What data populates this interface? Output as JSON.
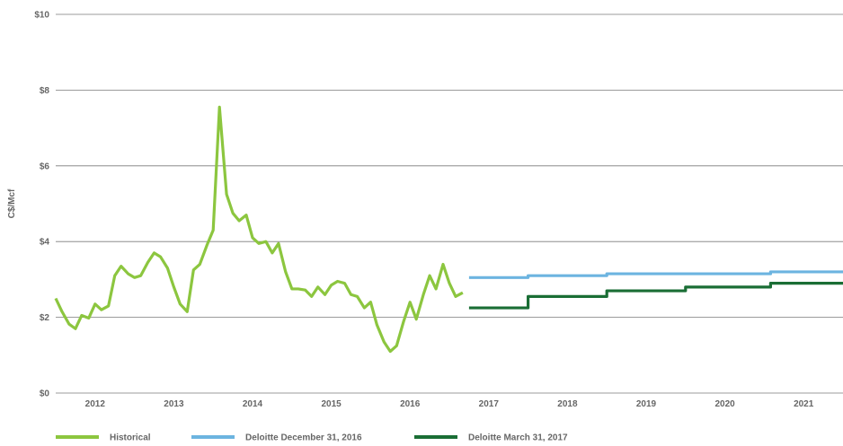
{
  "chart_data": {
    "type": "line",
    "ylabel": "C$/Mcf",
    "xlabel": "",
    "title": "",
    "ylim": [
      0,
      10
    ],
    "xlim": [
      2011.5,
      2021.5
    ],
    "y_ticks": [
      {
        "value": 0,
        "label": "$0"
      },
      {
        "value": 2,
        "label": "$2"
      },
      {
        "value": 4,
        "label": "$4"
      },
      {
        "value": 6,
        "label": "$6"
      },
      {
        "value": 8,
        "label": "$8"
      },
      {
        "value": 10,
        "label": "$10"
      }
    ],
    "x_tick_labels": [
      "2012",
      "2013",
      "2014",
      "2015",
      "2016",
      "2017",
      "2018",
      "2019",
      "2020",
      "2021"
    ],
    "grid": "horizontal",
    "legend_position": "bottom",
    "series": [
      {
        "name": "Historical",
        "color": "#8cc63f",
        "step": false,
        "points": [
          [
            2011.5,
            2.5
          ],
          [
            2011.58,
            2.15
          ],
          [
            2011.67,
            1.82
          ],
          [
            2011.75,
            1.7
          ],
          [
            2011.83,
            2.05
          ],
          [
            2011.92,
            1.98
          ],
          [
            2012.0,
            2.35
          ],
          [
            2012.08,
            2.2
          ],
          [
            2012.17,
            2.3
          ],
          [
            2012.25,
            3.1
          ],
          [
            2012.33,
            3.35
          ],
          [
            2012.42,
            3.15
          ],
          [
            2012.5,
            3.05
          ],
          [
            2012.58,
            3.1
          ],
          [
            2012.67,
            3.45
          ],
          [
            2012.75,
            3.7
          ],
          [
            2012.83,
            3.6
          ],
          [
            2012.92,
            3.3
          ],
          [
            2013.0,
            2.8
          ],
          [
            2013.08,
            2.35
          ],
          [
            2013.17,
            2.15
          ],
          [
            2013.25,
            3.25
          ],
          [
            2013.33,
            3.4
          ],
          [
            2013.42,
            3.9
          ],
          [
            2013.5,
            4.3
          ],
          [
            2013.58,
            7.55
          ],
          [
            2013.67,
            5.25
          ],
          [
            2013.75,
            4.75
          ],
          [
            2013.83,
            4.55
          ],
          [
            2013.92,
            4.7
          ],
          [
            2014.0,
            4.1
          ],
          [
            2014.08,
            3.95
          ],
          [
            2014.17,
            4.0
          ],
          [
            2014.25,
            3.7
          ],
          [
            2014.33,
            3.95
          ],
          [
            2014.42,
            3.2
          ],
          [
            2014.5,
            2.75
          ],
          [
            2014.58,
            2.75
          ],
          [
            2014.67,
            2.72
          ],
          [
            2014.75,
            2.55
          ],
          [
            2014.83,
            2.8
          ],
          [
            2014.92,
            2.6
          ],
          [
            2015.0,
            2.85
          ],
          [
            2015.08,
            2.95
          ],
          [
            2015.17,
            2.9
          ],
          [
            2015.25,
            2.6
          ],
          [
            2015.33,
            2.55
          ],
          [
            2015.42,
            2.25
          ],
          [
            2015.5,
            2.4
          ],
          [
            2015.58,
            1.8
          ],
          [
            2015.67,
            1.35
          ],
          [
            2015.75,
            1.1
          ],
          [
            2015.83,
            1.25
          ],
          [
            2015.92,
            1.9
          ],
          [
            2016.0,
            2.4
          ],
          [
            2016.08,
            1.95
          ],
          [
            2016.17,
            2.6
          ],
          [
            2016.25,
            3.1
          ],
          [
            2016.33,
            2.75
          ],
          [
            2016.42,
            3.4
          ],
          [
            2016.5,
            2.9
          ],
          [
            2016.58,
            2.55
          ],
          [
            2016.67,
            2.65
          ]
        ]
      },
      {
        "name": "Deloitte December 31, 2016",
        "color": "#6cb4e0",
        "step": true,
        "points": [
          [
            2016.75,
            3.05
          ],
          [
            2017.5,
            3.1
          ],
          [
            2018.5,
            3.15
          ],
          [
            2019.5,
            3.15
          ],
          [
            2020.58,
            3.2
          ],
          [
            2021.5,
            3.2
          ]
        ]
      },
      {
        "name": "Deloitte March 31, 2017",
        "color": "#1a6e35",
        "step": true,
        "points": [
          [
            2016.75,
            2.25
          ],
          [
            2017.5,
            2.55
          ],
          [
            2018.5,
            2.7
          ],
          [
            2019.5,
            2.8
          ],
          [
            2020.58,
            2.9
          ],
          [
            2021.5,
            2.9
          ]
        ]
      }
    ]
  }
}
